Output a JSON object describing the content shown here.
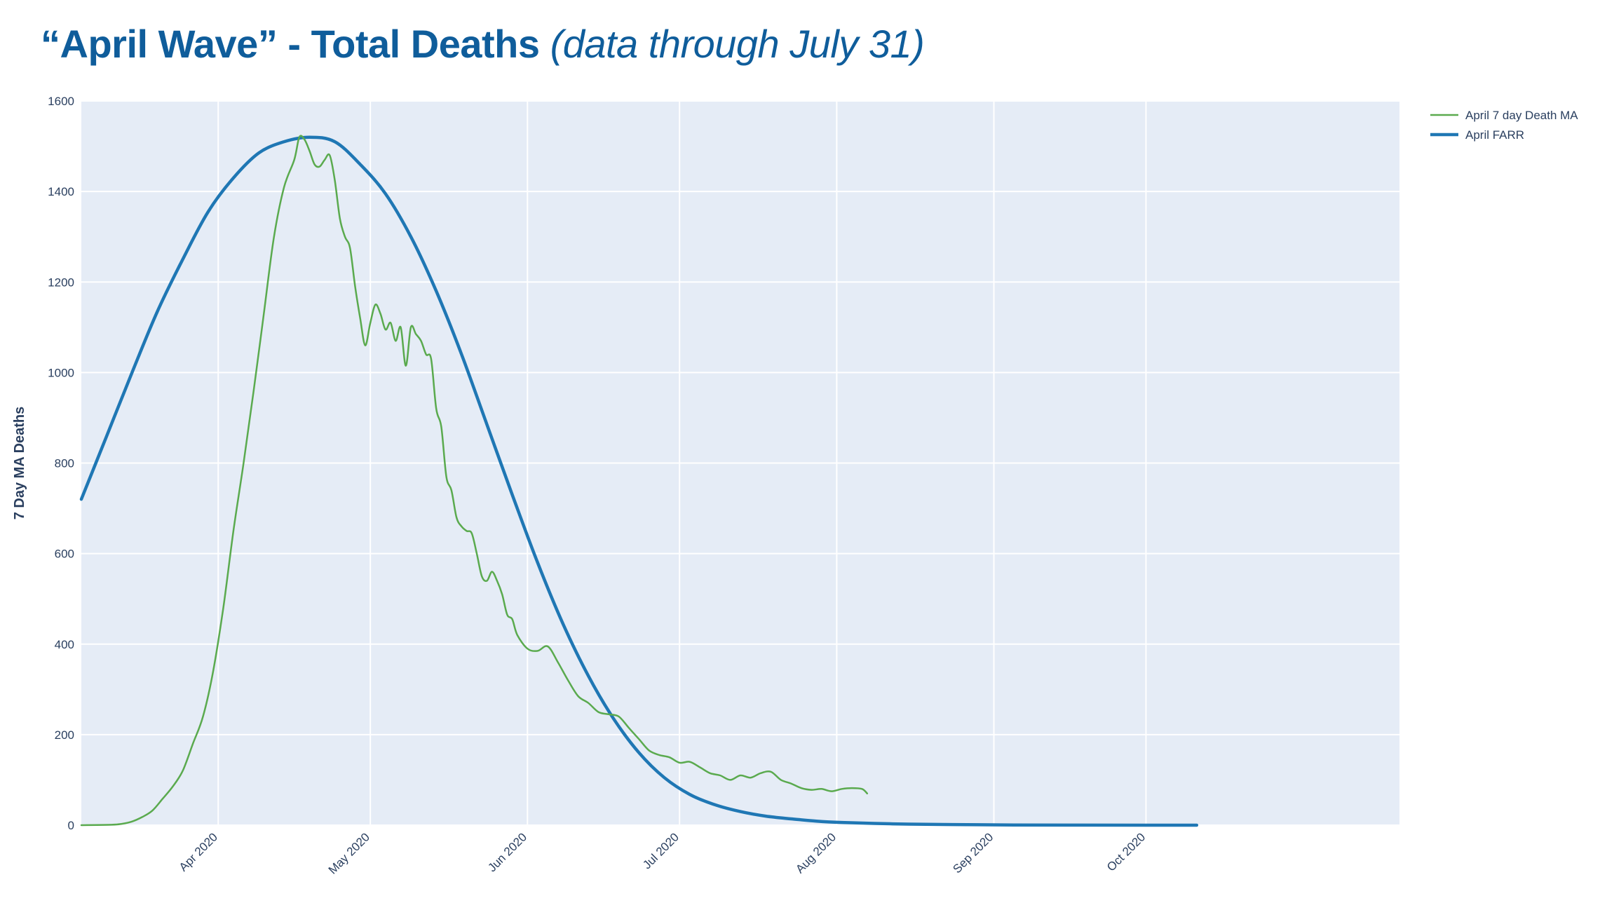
{
  "header": {
    "title_main": "“April Wave” - Total Deaths",
    "title_sub": "(data through July 31)"
  },
  "colors": {
    "plot_bg": "#e5ecf6",
    "grid": "#ffffff",
    "ma_series": "#5aaa4e",
    "farr_series": "#1f77b4",
    "title": "#0f5d9b"
  },
  "chart_data": {
    "type": "line",
    "ylabel": "7 Day MA Deaths",
    "xlabel": "",
    "ylim": [
      0,
      1600
    ],
    "xlim": [
      "2020-03-05",
      "2020-11-20"
    ],
    "yticks": [
      0,
      200,
      400,
      600,
      800,
      1000,
      1200,
      1400,
      1600
    ],
    "xticks": [
      {
        "date": "2020-04-01",
        "label": "Apr 2020"
      },
      {
        "date": "2020-05-01",
        "label": "May 2020"
      },
      {
        "date": "2020-06-01",
        "label": "Jun 2020"
      },
      {
        "date": "2020-07-01",
        "label": "Jul 2020"
      },
      {
        "date": "2020-08-01",
        "label": "Aug 2020"
      },
      {
        "date": "2020-09-01",
        "label": "Sep 2020"
      },
      {
        "date": "2020-10-01",
        "label": "Oct 2020"
      }
    ],
    "grid": true,
    "legend_position": "top-right",
    "series": [
      {
        "name": "April 7 day Death MA",
        "color": "#5aaa4e",
        "points": [
          [
            "2020-03-05",
            0
          ],
          [
            "2020-03-11",
            1
          ],
          [
            "2020-03-13",
            3
          ],
          [
            "2020-03-15",
            8
          ],
          [
            "2020-03-17",
            18
          ],
          [
            "2020-03-19",
            32
          ],
          [
            "2020-03-21",
            58
          ],
          [
            "2020-03-23",
            85
          ],
          [
            "2020-03-25",
            120
          ],
          [
            "2020-03-27",
            180
          ],
          [
            "2020-03-29",
            240
          ],
          [
            "2020-03-31",
            340
          ],
          [
            "2020-04-02",
            480
          ],
          [
            "2020-04-04",
            650
          ],
          [
            "2020-04-06",
            800
          ],
          [
            "2020-04-08",
            960
          ],
          [
            "2020-04-10",
            1130
          ],
          [
            "2020-04-12",
            1300
          ],
          [
            "2020-04-14",
            1410
          ],
          [
            "2020-04-16",
            1470
          ],
          [
            "2020-04-17",
            1520
          ],
          [
            "2020-04-18",
            1515
          ],
          [
            "2020-04-19",
            1490
          ],
          [
            "2020-04-20",
            1460
          ],
          [
            "2020-04-21",
            1455
          ],
          [
            "2020-04-22",
            1470
          ],
          [
            "2020-04-23",
            1480
          ],
          [
            "2020-04-24",
            1425
          ],
          [
            "2020-04-25",
            1340
          ],
          [
            "2020-04-26",
            1300
          ],
          [
            "2020-04-27",
            1275
          ],
          [
            "2020-04-28",
            1190
          ],
          [
            "2020-04-29",
            1120
          ],
          [
            "2020-04-30",
            1060
          ],
          [
            "2020-05-01",
            1110
          ],
          [
            "2020-05-02",
            1150
          ],
          [
            "2020-05-03",
            1130
          ],
          [
            "2020-05-04",
            1095
          ],
          [
            "2020-05-05",
            1110
          ],
          [
            "2020-05-06",
            1070
          ],
          [
            "2020-05-07",
            1100
          ],
          [
            "2020-05-08",
            1015
          ],
          [
            "2020-05-09",
            1100
          ],
          [
            "2020-05-10",
            1085
          ],
          [
            "2020-05-11",
            1070
          ],
          [
            "2020-05-12",
            1040
          ],
          [
            "2020-05-13",
            1030
          ],
          [
            "2020-05-14",
            920
          ],
          [
            "2020-05-15",
            880
          ],
          [
            "2020-05-16",
            770
          ],
          [
            "2020-05-17",
            740
          ],
          [
            "2020-05-18",
            680
          ],
          [
            "2020-05-19",
            660
          ],
          [
            "2020-05-20",
            650
          ],
          [
            "2020-05-21",
            645
          ],
          [
            "2020-05-22",
            600
          ],
          [
            "2020-05-23",
            550
          ],
          [
            "2020-05-24",
            540
          ],
          [
            "2020-05-25",
            560
          ],
          [
            "2020-05-26",
            540
          ],
          [
            "2020-05-27",
            510
          ],
          [
            "2020-05-28",
            465
          ],
          [
            "2020-05-29",
            455
          ],
          [
            "2020-05-30",
            420
          ],
          [
            "2020-06-01",
            390
          ],
          [
            "2020-06-03",
            385
          ],
          [
            "2020-06-05",
            395
          ],
          [
            "2020-06-07",
            360
          ],
          [
            "2020-06-09",
            320
          ],
          [
            "2020-06-11",
            285
          ],
          [
            "2020-06-13",
            270
          ],
          [
            "2020-06-15",
            250
          ],
          [
            "2020-06-17",
            245
          ],
          [
            "2020-06-19",
            240
          ],
          [
            "2020-06-21",
            215
          ],
          [
            "2020-06-23",
            190
          ],
          [
            "2020-06-25",
            165
          ],
          [
            "2020-06-27",
            155
          ],
          [
            "2020-06-29",
            150
          ],
          [
            "2020-07-01",
            138
          ],
          [
            "2020-07-03",
            140
          ],
          [
            "2020-07-05",
            128
          ],
          [
            "2020-07-07",
            115
          ],
          [
            "2020-07-09",
            110
          ],
          [
            "2020-07-11",
            100
          ],
          [
            "2020-07-13",
            110
          ],
          [
            "2020-07-15",
            105
          ],
          [
            "2020-07-17",
            115
          ],
          [
            "2020-07-19",
            118
          ],
          [
            "2020-07-21",
            100
          ],
          [
            "2020-07-23",
            92
          ],
          [
            "2020-07-25",
            82
          ],
          [
            "2020-07-27",
            78
          ],
          [
            "2020-07-29",
            80
          ],
          [
            "2020-07-31",
            75
          ],
          [
            "2020-08-02",
            80
          ],
          [
            "2020-08-04",
            82
          ],
          [
            "2020-08-06",
            80
          ],
          [
            "2020-08-07",
            70
          ]
        ]
      },
      {
        "name": "April FARR",
        "color": "#1f77b4",
        "points": [
          [
            "2020-03-05",
            720
          ],
          [
            "2020-03-10",
            860
          ],
          [
            "2020-03-15",
            1000
          ],
          [
            "2020-03-20",
            1135
          ],
          [
            "2020-03-25",
            1250
          ],
          [
            "2020-03-30",
            1355
          ],
          [
            "2020-04-04",
            1430
          ],
          [
            "2020-04-09",
            1485
          ],
          [
            "2020-04-14",
            1510
          ],
          [
            "2020-04-19",
            1520
          ],
          [
            "2020-04-24",
            1510
          ],
          [
            "2020-04-29",
            1460
          ],
          [
            "2020-05-04",
            1395
          ],
          [
            "2020-05-09",
            1300
          ],
          [
            "2020-05-14",
            1180
          ],
          [
            "2020-05-19",
            1040
          ],
          [
            "2020-05-24",
            885
          ],
          [
            "2020-05-29",
            730
          ],
          [
            "2020-06-03",
            580
          ],
          [
            "2020-06-08",
            445
          ],
          [
            "2020-06-13",
            330
          ],
          [
            "2020-06-18",
            235
          ],
          [
            "2020-06-23",
            160
          ],
          [
            "2020-06-28",
            105
          ],
          [
            "2020-07-03",
            68
          ],
          [
            "2020-07-08",
            45
          ],
          [
            "2020-07-13",
            30
          ],
          [
            "2020-07-18",
            20
          ],
          [
            "2020-07-23",
            14
          ],
          [
            "2020-07-28",
            9
          ],
          [
            "2020-08-02",
            6
          ],
          [
            "2020-08-12",
            3
          ],
          [
            "2020-08-22",
            1.5
          ],
          [
            "2020-09-05",
            0.5
          ],
          [
            "2020-10-01",
            0
          ],
          [
            "2020-10-11",
            0
          ]
        ]
      }
    ]
  }
}
